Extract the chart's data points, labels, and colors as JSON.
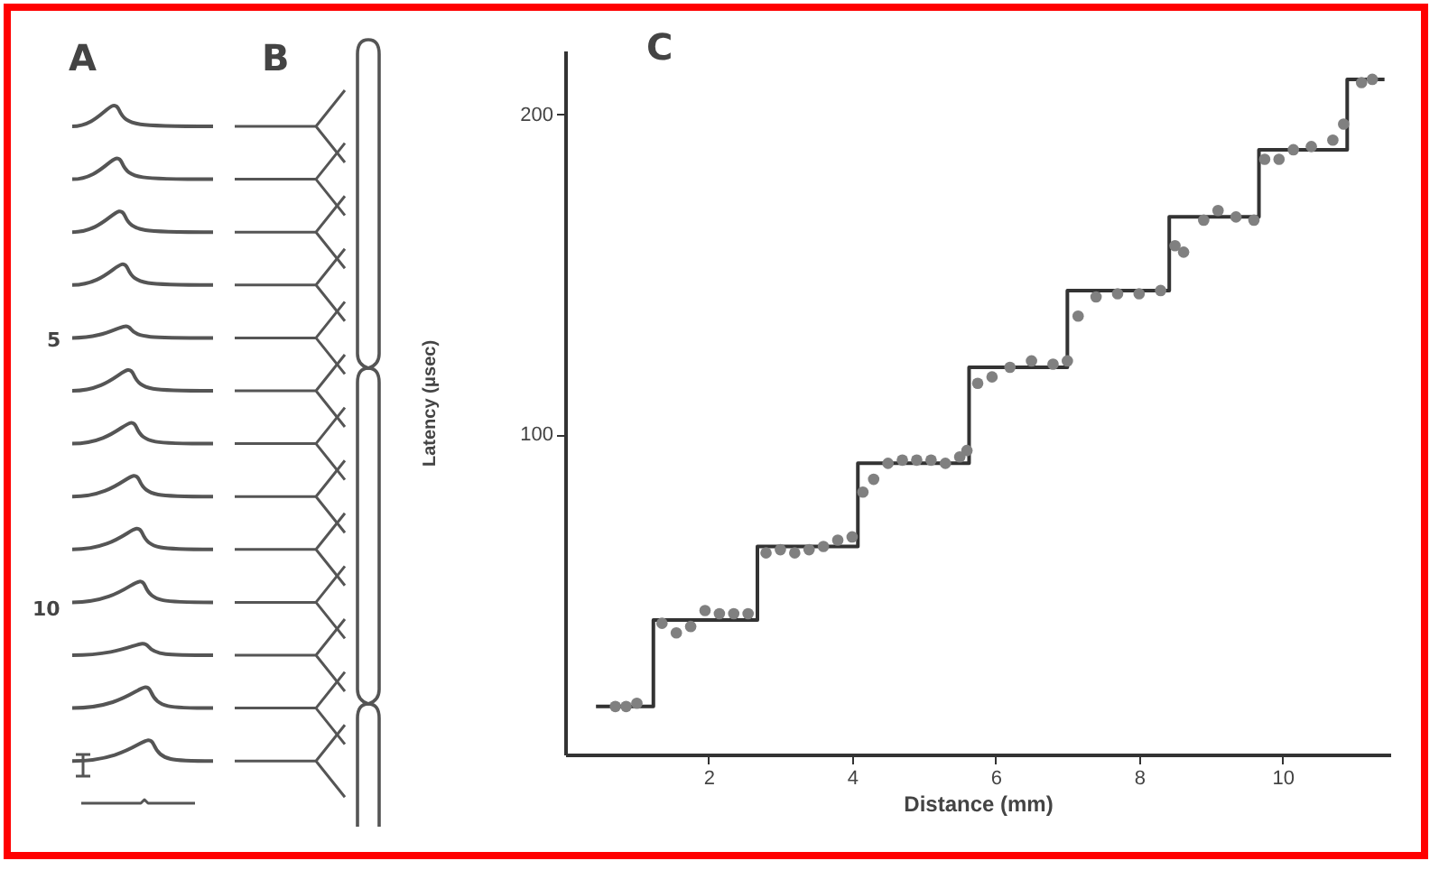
{
  "chart_data": {
    "type": "scatter",
    "xlabel": "Distance (mm)",
    "ylabel": "Latency (μsec)",
    "xlim": [
      0,
      11.5
    ],
    "ylim": [
      0,
      220
    ],
    "xticks": [
      2,
      4,
      6,
      8,
      10
    ],
    "yticks": [
      100,
      200
    ],
    "grid": false,
    "annotations": [
      "A",
      "B",
      "C",
      "5",
      "10"
    ],
    "series": [
      {
        "type": "step",
        "marker": "none",
        "color": "#333333",
        "x": [
          0.43,
          1.23,
          2.68,
          4.08,
          5.63,
          7.0,
          8.42,
          9.67,
          10.9,
          11.42
        ],
        "values": [
          15,
          42,
          65,
          91,
          121,
          145,
          168,
          189,
          211,
          211
        ]
      },
      {
        "marker": "circle",
        "color": "#808080",
        "x": [
          0.7,
          0.85,
          1.0,
          1.35,
          1.55,
          1.75,
          1.95,
          2.15,
          2.35,
          2.55,
          2.8,
          3.0,
          3.2,
          3.4,
          3.6,
          3.8,
          4.0,
          4.15,
          4.3,
          4.5,
          4.7,
          4.9,
          5.1,
          5.3,
          5.5,
          5.6,
          5.75,
          5.95,
          6.2,
          6.5,
          6.8,
          7.0,
          7.15,
          7.4,
          7.7,
          8.0,
          8.3,
          8.5,
          8.62,
          8.9,
          9.1,
          9.35,
          9.6,
          9.75,
          9.95,
          10.15,
          10.4,
          10.7,
          10.85,
          11.1,
          11.25
        ],
        "values": [
          15,
          15,
          16,
          41,
          38,
          40,
          45,
          44,
          44,
          44,
          63,
          64,
          63,
          64,
          65,
          67,
          68,
          82,
          86,
          91,
          92,
          92,
          92,
          91,
          93,
          95,
          116,
          118,
          121,
          123,
          122,
          123,
          137,
          143,
          144,
          144,
          145,
          159,
          157,
          167,
          170,
          168,
          167,
          186,
          186,
          189,
          190,
          192,
          197,
          210,
          211
        ]
      }
    ]
  }
}
